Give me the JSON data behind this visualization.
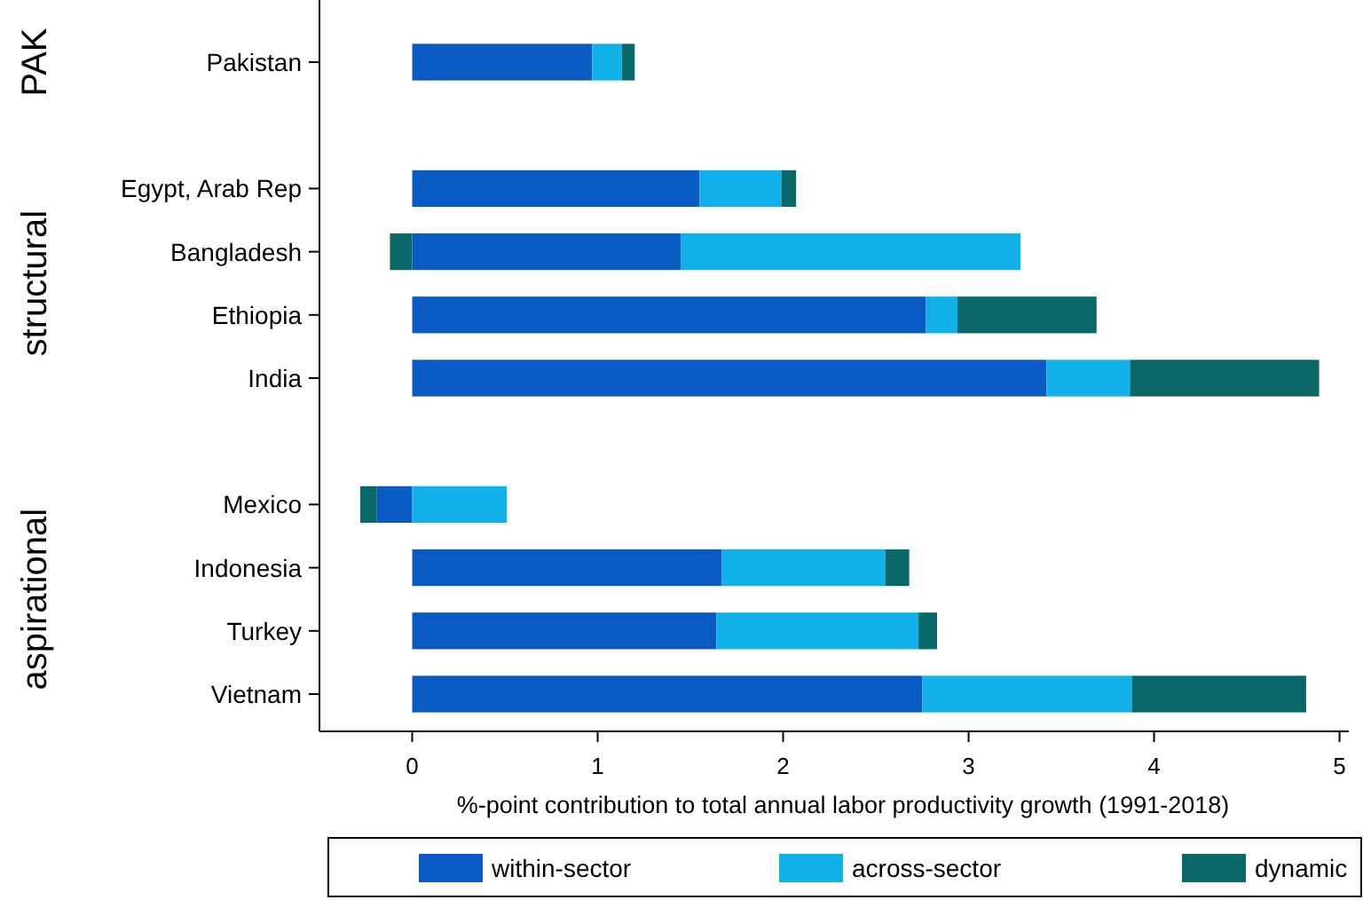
{
  "chart_data": {
    "type": "bar",
    "orientation": "horizontal",
    "stacked": true,
    "xlabel": "%-point contribution to total annual labor productivity growth (1991-2018)",
    "categories": [
      "Pakistan",
      null,
      "Egypt, Arab Rep",
      "Bangladesh",
      "Ethiopia",
      "India",
      null,
      "Mexico",
      "Indonesia",
      "Turkey",
      "Vietnam"
    ],
    "series": [
      {
        "name": "within-sector",
        "color": "#0a5ac4",
        "values": [
          0.97,
          null,
          1.55,
          1.45,
          2.77,
          3.42,
          null,
          -0.19,
          1.67,
          1.64,
          2.75
        ]
      },
      {
        "name": "across-sector",
        "color": "#10b0e8",
        "values": [
          0.16,
          null,
          0.44,
          1.83,
          0.17,
          0.45,
          null,
          0.51,
          0.88,
          1.09,
          1.13
        ]
      },
      {
        "name": "dynamic",
        "color": "#0b6868",
        "values": [
          0.07,
          null,
          0.08,
          -0.12,
          0.75,
          1.02,
          null,
          -0.09,
          0.13,
          0.1,
          0.94
        ]
      }
    ],
    "annotations": [
      "PAK",
      "structural",
      "aspirational"
    ],
    "xlim": [
      -0.5,
      5.05
    ],
    "xticks": [
      0,
      1,
      2,
      3,
      4,
      5
    ],
    "grid": false,
    "legend": "bottom"
  }
}
